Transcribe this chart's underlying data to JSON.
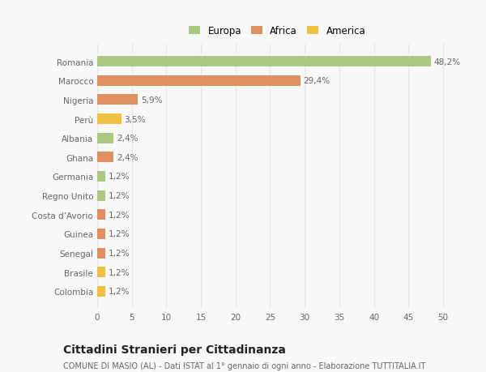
{
  "categories": [
    "Colombia",
    "Brasile",
    "Senegal",
    "Guinea",
    "Costa d’Avorio",
    "Regno Unito",
    "Germania",
    "Ghana",
    "Albania",
    "Perù",
    "Nigeria",
    "Marocco",
    "Romania"
  ],
  "values": [
    1.2,
    1.2,
    1.2,
    1.2,
    1.2,
    1.2,
    1.2,
    2.4,
    2.4,
    3.5,
    5.9,
    29.4,
    48.2
  ],
  "colors": [
    "#f0c040",
    "#f0c040",
    "#e09060",
    "#e09060",
    "#e09060",
    "#aac880",
    "#aac880",
    "#e09060",
    "#aac880",
    "#f0c040",
    "#e09060",
    "#e09060",
    "#aac880"
  ],
  "labels": [
    "1,2%",
    "1,2%",
    "1,2%",
    "1,2%",
    "1,2%",
    "1,2%",
    "1,2%",
    "2,4%",
    "2,4%",
    "3,5%",
    "5,9%",
    "29,4%",
    "48,2%"
  ],
  "legend": [
    {
      "label": "Europa",
      "color": "#aac880"
    },
    {
      "label": "Africa",
      "color": "#e09060"
    },
    {
      "label": "America",
      "color": "#f0c040"
    }
  ],
  "title": "Cittadini Stranieri per Cittadinanza",
  "subtitle": "COMUNE DI MASIO (AL) - Dati ISTAT al 1° gennaio di ogni anno - Elaborazione TUTTITALIA.IT",
  "xlim": [
    0,
    52
  ],
  "xticks": [
    0,
    5,
    10,
    15,
    20,
    25,
    30,
    35,
    40,
    45,
    50
  ],
  "background_color": "#f9f9f9",
  "grid_color": "#e8e8e8",
  "bar_height": 0.55,
  "label_fontsize": 7.5,
  "tick_fontsize": 7.5,
  "title_fontsize": 10,
  "subtitle_fontsize": 7
}
